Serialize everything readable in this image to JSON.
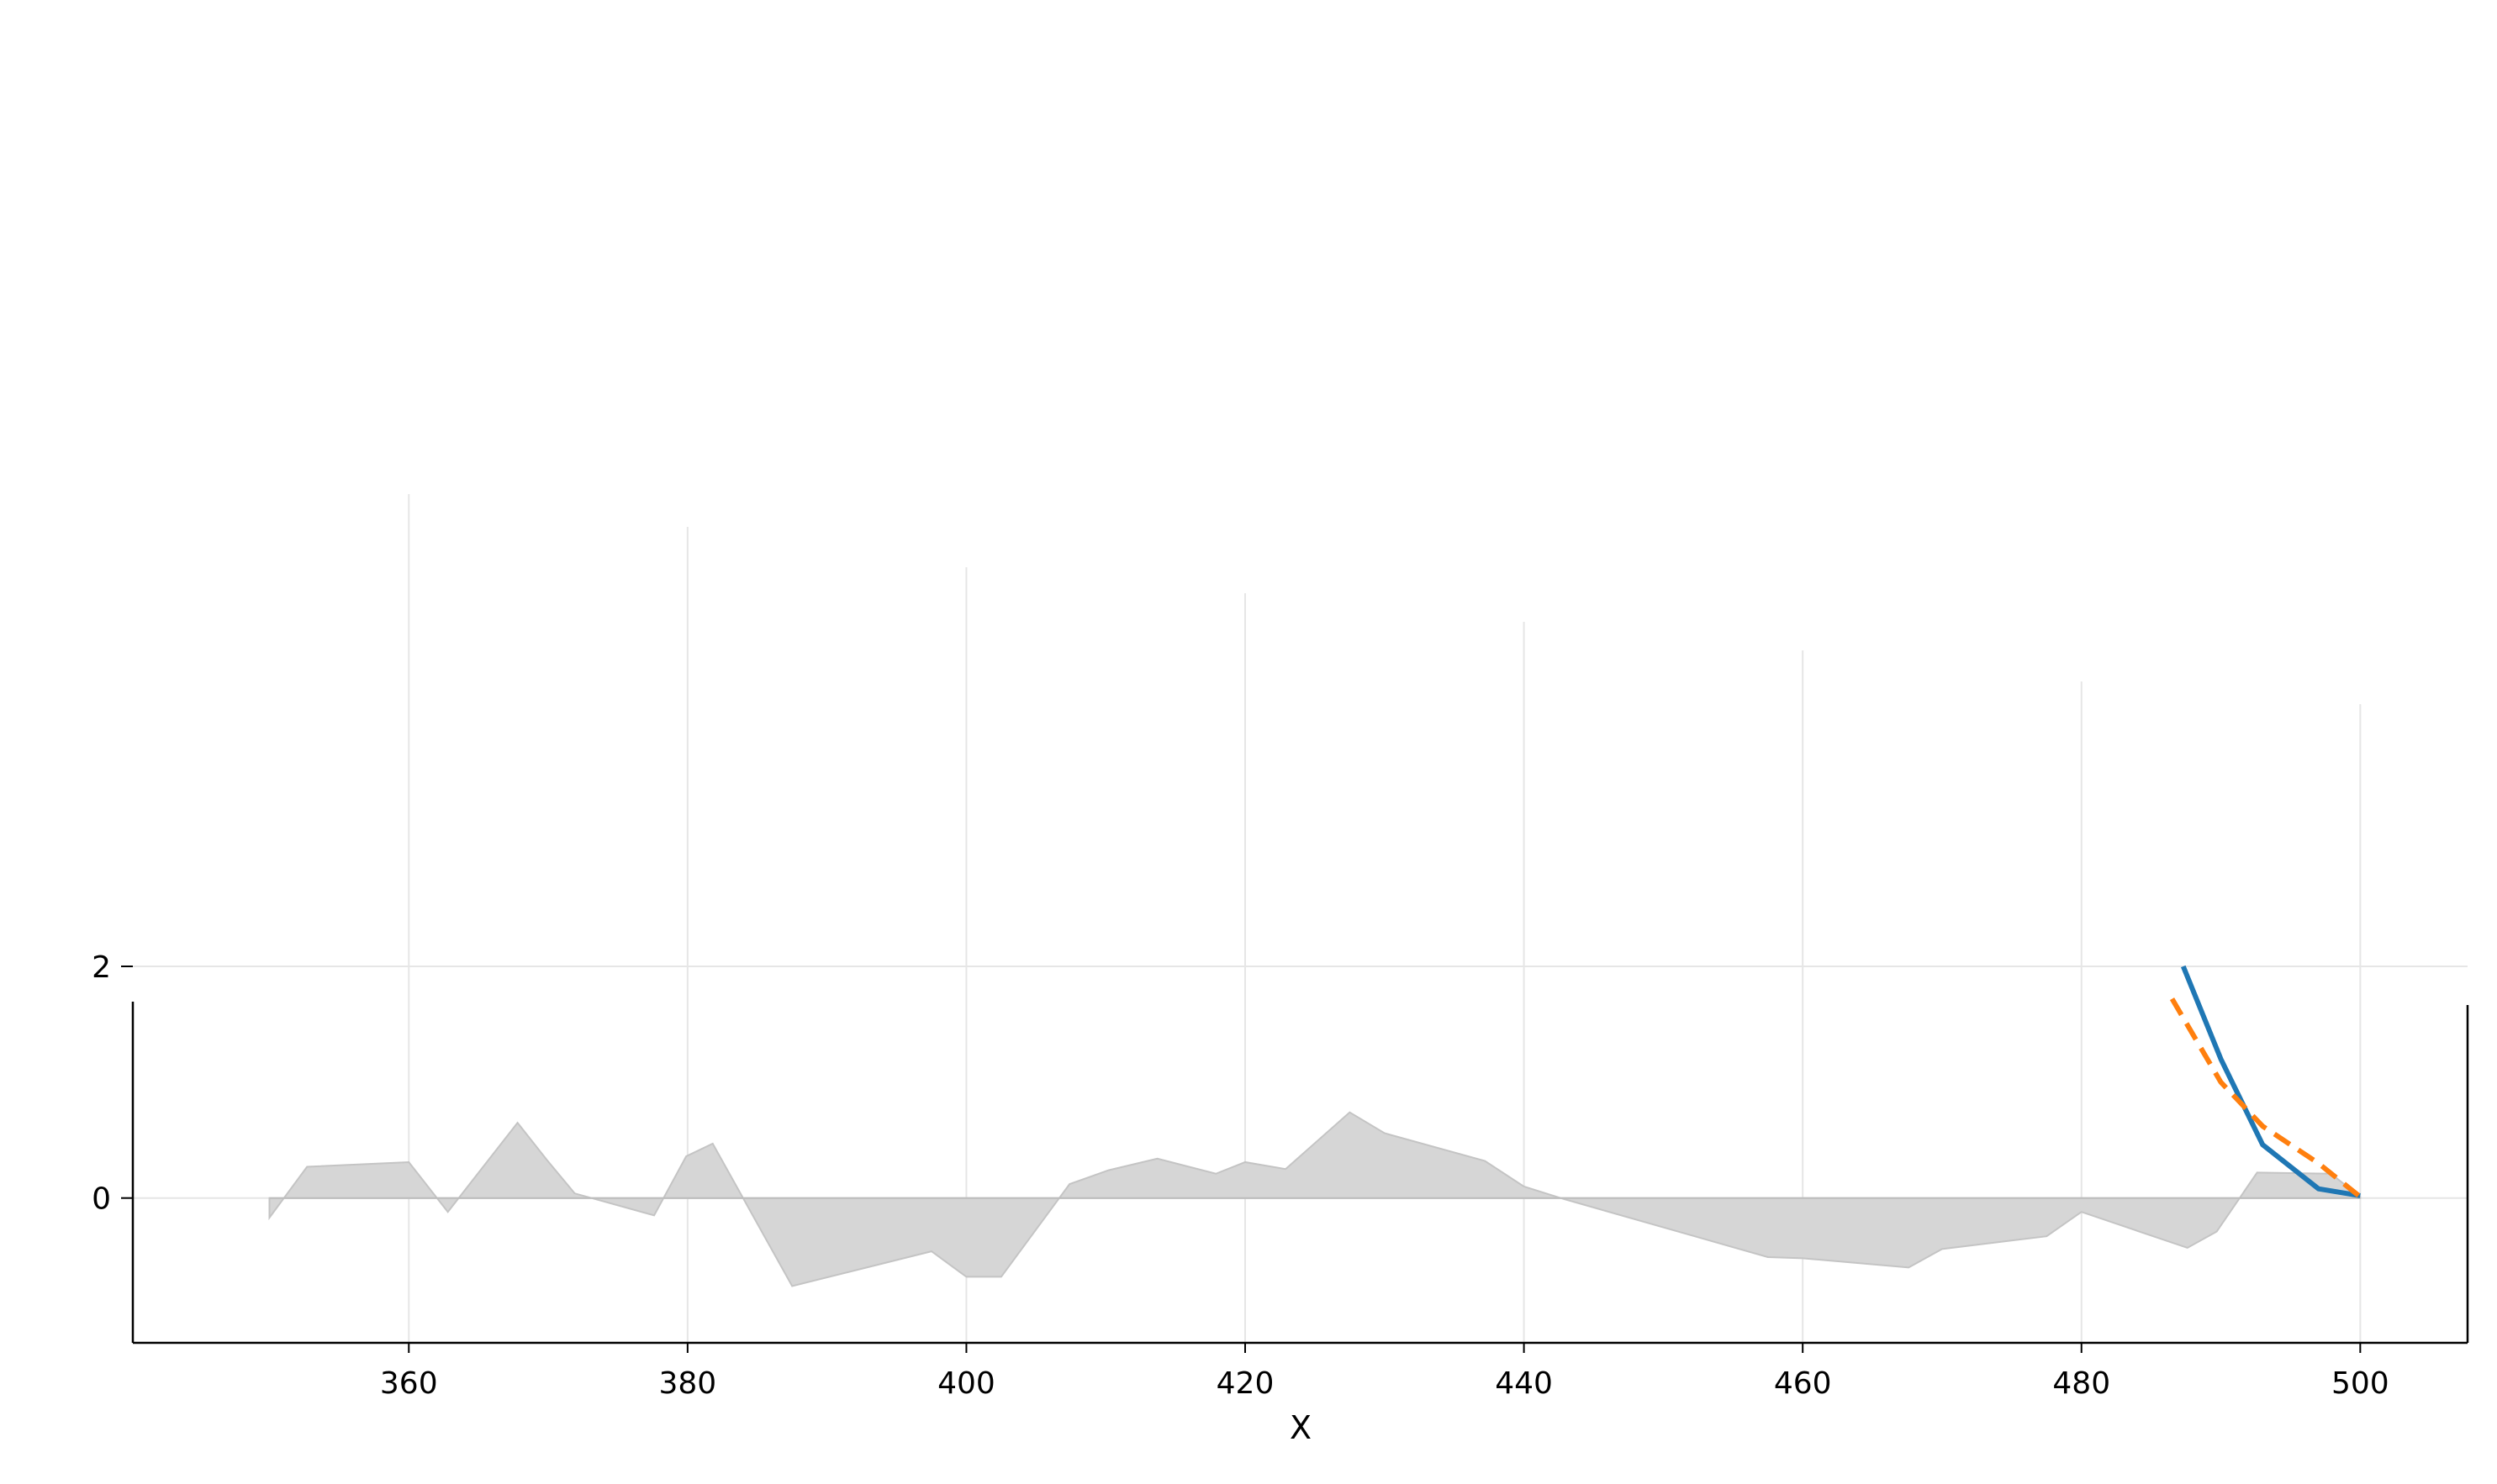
{
  "chart_data": {
    "type": "line",
    "title": "",
    "xlabel": "X",
    "ylabel": "",
    "xlim": [
      340.2,
      507.7
    ],
    "ylim": [
      -1.25,
      2.0
    ],
    "x_ticks": [
      360,
      380,
      400,
      420,
      440,
      460,
      480,
      500
    ],
    "x_tick_labels": [
      "360",
      "380",
      "400",
      "420",
      "440",
      "460",
      "480",
      "500"
    ],
    "y_ticks": [
      0,
      2
    ],
    "y_tick_labels": [
      "0",
      "2"
    ],
    "grid": true,
    "legend": "none",
    "colors": {
      "fill": "#d6d6d6",
      "fill_edge": "#c4c4c4",
      "series_solid": "#1f77b4",
      "series_dashed": "#ff7f0e",
      "grid": "#e6e6e6",
      "axis": "#000000"
    },
    "area": {
      "x": [
        350,
        352.7,
        360,
        362.8,
        367.8,
        369.9,
        371.9,
        377.6,
        379.9,
        381.8,
        387.5,
        397.5,
        400,
        402.5,
        407.4,
        410.2,
        413.7,
        417.9,
        420,
        422.9,
        427.5,
        430,
        437.2,
        440,
        442.9,
        457.5,
        460,
        467.6,
        470,
        477.5,
        480,
        487.6,
        489.7,
        492.6,
        497.9,
        500
      ],
      "y": [
        -0.17,
        0.27,
        0.31,
        -0.12,
        0.65,
        0.33,
        0.04,
        -0.15,
        0.36,
        0.47,
        -0.76,
        -0.46,
        -0.68,
        -0.68,
        0.12,
        0.24,
        0.34,
        0.21,
        0.31,
        0.25,
        0.74,
        0.56,
        0.32,
        0.1,
        -0.01,
        -0.51,
        -0.52,
        -0.6,
        -0.44,
        -0.33,
        -0.12,
        -0.43,
        -0.29,
        0.22,
        0.21,
        0.01
      ]
    },
    "series": [
      {
        "style": "solid",
        "x": [
          487.3,
          490,
          493,
          497,
          500
        ],
        "y": [
          2.0,
          1.2,
          0.46,
          0.08,
          0.02
        ]
      },
      {
        "style": "dashed",
        "x": [
          486.5,
          490,
          493,
          497,
          500
        ],
        "y": [
          1.72,
          1.0,
          0.62,
          0.3,
          0.01
        ]
      }
    ]
  }
}
